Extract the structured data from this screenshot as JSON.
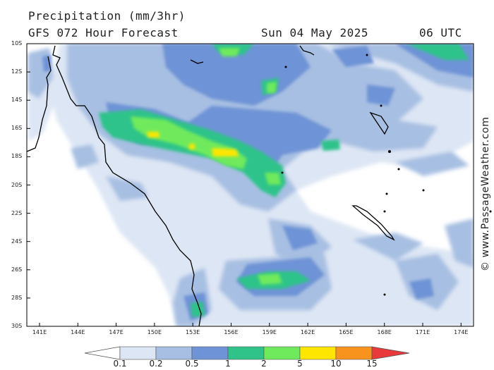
{
  "header": {
    "title": "Precipitation (mm/3hr)",
    "subtitle": "GFS 072 Hour Forecast",
    "date": "Sun 04 May 2025",
    "time": "06 UTC"
  },
  "map": {
    "lat_labels": [
      "10S",
      "12S",
      "14S",
      "16S",
      "18S",
      "20S",
      "22S",
      "24S",
      "26S",
      "28S",
      "30S"
    ],
    "lon_labels": [
      "141E",
      "144E",
      "147E",
      "150E",
      "153E",
      "156E",
      "159E",
      "162E",
      "165E",
      "168E",
      "171E",
      "174E"
    ],
    "colors": {
      "coast": "#000000",
      "background": "#ffffff"
    }
  },
  "watermark": "© www.PassageWeather.com",
  "colorbar": {
    "labels": [
      "0.1",
      "0.2",
      "0.5",
      "1",
      "2",
      "5",
      "10",
      "15"
    ],
    "colors": [
      "#ffffff",
      "#dde6f4",
      "#a7bfe2",
      "#6e93d6",
      "#2fc38a",
      "#6fea5c",
      "#ffe600",
      "#f8931e",
      "#e8393c"
    ]
  }
}
